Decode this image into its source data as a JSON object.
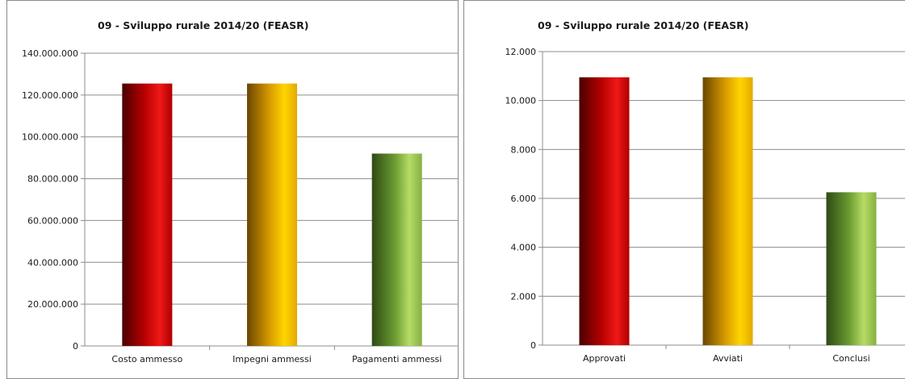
{
  "chart_data": [
    {
      "type": "bar",
      "title": "09 - Sviluppo rurale 2014/20 (FEASR)",
      "categories": [
        "Costo ammesso",
        "Impegni ammessi",
        "Pagamenti ammessi"
      ],
      "values": [
        125500000,
        125500000,
        92000000
      ],
      "ylim": [
        0,
        140000000
      ],
      "yticks": [
        0,
        20000000,
        40000000,
        60000000,
        80000000,
        100000000,
        120000000,
        140000000
      ],
      "ytick_labels": [
        "0",
        "20.000.000",
        "40.000.000",
        "60.000.000",
        "80.000.000",
        "100.000.000",
        "120.000.000",
        "140.000.000"
      ],
      "grid": true,
      "legend": "none",
      "colors": [
        [
          "#4a0000",
          "#b80000",
          "#f01818",
          "#b00000"
        ],
        [
          "#6a4600",
          "#d89a00",
          "#ffd500",
          "#e3a800"
        ],
        [
          "#2e4a16",
          "#6a9a30",
          "#b6dc66",
          "#86b040"
        ]
      ]
    },
    {
      "type": "bar",
      "title": "09 - Sviluppo rurale 2014/20 (FEASR)",
      "categories": [
        "Approvati",
        "Avviati",
        "Conclusi"
      ],
      "values": [
        10950,
        10950,
        6250
      ],
      "ylim": [
        0,
        12000
      ],
      "yticks": [
        0,
        2000,
        4000,
        6000,
        8000,
        10000,
        12000
      ],
      "ytick_labels": [
        "0",
        "2.000",
        "4.000",
        "6.000",
        "8.000",
        "10.000",
        "12.000"
      ],
      "grid": true,
      "legend": "none",
      "colors": [
        [
          "#4a0000",
          "#b80000",
          "#f01818",
          "#b00000"
        ],
        [
          "#6a4600",
          "#d89a00",
          "#ffd500",
          "#e3a800"
        ],
        [
          "#2e4a16",
          "#6a9a30",
          "#b6dc66",
          "#86b040"
        ]
      ]
    }
  ]
}
